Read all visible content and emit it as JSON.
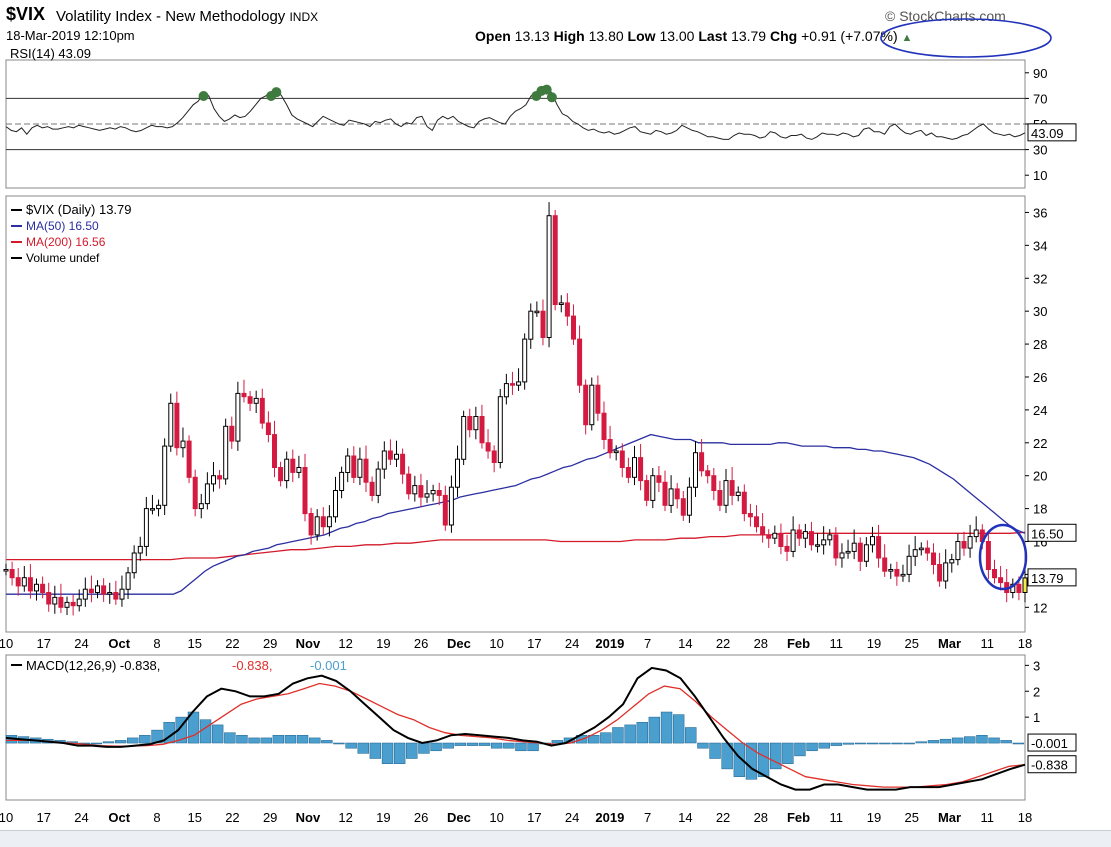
{
  "header": {
    "symbol": "$VIX",
    "name": "Volatility Index - New Methodology",
    "exchange": "INDX",
    "datetime": "18-Mar-2019 12:10pm",
    "brand": "© StockCharts.com",
    "open_label": "Open",
    "open": "13.13",
    "high_label": "High",
    "high": "13.80",
    "low_label": "Low",
    "low": "13.00",
    "last_label": "Last",
    "last": "13.79",
    "chg_label": "Chg",
    "chg": "+0.91 (+7.07%)",
    "chg_arrow": "▲"
  },
  "colors": {
    "up": "#000000",
    "down": "#d41a40",
    "today": "#f6e94a",
    "ma50": "#2b2fa0",
    "ma200": "#d41a2a",
    "hist": "#4a9fcf",
    "annotation": "#2233bb",
    "overbought": "#3f7a3f"
  },
  "chart_data": [
    {
      "type": "line",
      "legend": "RSI(14) 43.09",
      "series": [
        {
          "values": [
            48,
            45,
            44,
            47,
            42,
            47,
            49,
            47,
            48,
            46,
            46,
            47,
            48,
            47,
            49,
            48,
            47,
            46,
            45,
            46,
            47,
            46,
            48,
            47,
            45,
            44,
            45,
            47,
            49,
            48,
            48,
            47,
            48,
            51,
            55,
            60,
            65,
            68,
            75,
            72,
            62,
            56,
            52,
            54,
            57,
            55,
            56,
            60,
            65,
            70,
            72,
            75,
            78,
            72,
            65,
            57,
            54,
            52,
            50,
            48,
            52,
            56,
            54,
            52,
            50,
            49,
            53,
            52,
            51,
            50,
            48,
            52,
            51,
            53,
            54,
            50,
            48,
            51,
            50,
            55,
            56,
            48,
            45,
            53,
            56,
            54,
            56,
            52,
            50,
            48,
            47,
            52,
            54,
            55,
            53,
            51,
            50,
            56,
            60,
            62,
            65,
            72,
            75,
            79,
            80,
            74,
            65,
            58,
            56,
            52,
            50,
            47,
            45,
            46,
            44,
            43,
            44,
            42,
            43,
            45,
            47,
            48,
            44,
            43,
            42,
            45,
            44,
            42,
            43,
            45,
            49,
            47,
            45,
            44,
            42,
            40,
            40,
            39,
            38,
            38,
            41,
            43,
            42,
            42,
            41,
            39,
            40,
            44,
            43,
            40,
            39,
            41,
            41,
            42,
            39,
            38,
            40,
            43,
            42,
            42,
            41,
            43,
            42,
            40,
            41,
            46,
            47,
            44,
            44,
            42,
            48,
            50,
            46,
            43,
            42,
            44,
            45,
            41,
            43,
            40,
            40,
            39,
            38,
            39,
            41,
            42,
            45,
            48,
            50,
            46,
            43,
            42,
            41,
            42,
            40,
            41,
            43.09
          ]
        }
      ],
      "ylim": [
        0,
        100
      ],
      "yticks": [
        "90",
        "70",
        "50",
        "30",
        "10"
      ],
      "reference_lines": [
        70,
        50,
        30
      ],
      "last_label": "43.09"
    },
    {
      "type": "candlestick",
      "legend": [
        "$VIX (Daily) 13.79",
        "MA(50) 16.50",
        "MA(200) 16.56",
        "Volume undef"
      ],
      "ylim": [
        10.5,
        37
      ],
      "yticks": [
        "12",
        "14",
        "16",
        "18",
        "20",
        "22",
        "24",
        "26",
        "28",
        "30",
        "32",
        "34",
        "36"
      ],
      "close": [
        14.3,
        13.8,
        13.3,
        13.8,
        13.0,
        13.4,
        12.9,
        12.2,
        12.6,
        12.0,
        12.3,
        12.1,
        12.5,
        13.1,
        12.9,
        13.3,
        12.8,
        12.9,
        12.5,
        13.1,
        14.1,
        15.3,
        15.7,
        18.0,
        18.0,
        18.2,
        21.8,
        24.4,
        21.7,
        22.1,
        19.9,
        18.0,
        18.3,
        19.5,
        20.0,
        19.8,
        23.0,
        22.1,
        25.0,
        24.8,
        24.4,
        24.7,
        23.2,
        22.5,
        20.5,
        19.7,
        21.0,
        20.2,
        20.5,
        17.7,
        16.4,
        17.5,
        16.9,
        17.5,
        19.1,
        20.2,
        21.2,
        19.9,
        21.0,
        19.6,
        18.8,
        20.4,
        21.5,
        21.0,
        21.3,
        20.1,
        18.9,
        19.4,
        18.7,
        18.9,
        19.1,
        18.8,
        17.0,
        19.3,
        21.0,
        23.6,
        22.8,
        23.6,
        22.0,
        21.5,
        20.8,
        24.8,
        25.6,
        25.5,
        25.7,
        28.3,
        30.0,
        30.0,
        28.4,
        35.8,
        30.4,
        30.5,
        29.7,
        28.3,
        25.5,
        23.1,
        25.5,
        23.8,
        22.2,
        21.4,
        21.5,
        20.5,
        19.9,
        21.1,
        19.7,
        18.5,
        20.0,
        19.6,
        18.2,
        19.2,
        18.6,
        17.6,
        19.3,
        21.4,
        20.3,
        20.0,
        19.1,
        18.2,
        19.7,
        18.8,
        19.0,
        17.7,
        17.5,
        16.9,
        16.4,
        16.2,
        16.5,
        15.7,
        15.4,
        16.7,
        16.2,
        16.6,
        15.8,
        15.8,
        16.1,
        16.4,
        15.0,
        15.3,
        15.4,
        15.9,
        14.8,
        15.8,
        16.3,
        15.0,
        14.2,
        14.3,
        13.9,
        14.0,
        15.1,
        15.5,
        15.6,
        15.3,
        14.6,
        13.6,
        14.7,
        14.9,
        16.0,
        15.6,
        16.3,
        16.7,
        16.0,
        14.3,
        13.8,
        13.5,
        12.9,
        13.4,
        12.9,
        13.79
      ],
      "ma50": [
        12.8,
        12.8,
        12.8,
        12.8,
        12.8,
        12.8,
        12.8,
        12.8,
        12.8,
        12.8,
        12.8,
        12.8,
        12.8,
        12.8,
        12.8,
        12.8,
        12.8,
        12.8,
        12.8,
        12.8,
        12.8,
        12.8,
        13.0,
        13.4,
        13.8,
        14.2,
        14.5,
        14.7,
        14.9,
        15.1,
        15.2,
        15.4,
        15.5,
        15.6,
        15.8,
        15.9,
        16.0,
        16.1,
        16.2,
        16.3,
        16.4,
        16.6,
        16.8,
        16.9,
        17.1,
        17.2,
        17.4,
        17.5,
        17.7,
        17.8,
        17.9,
        18.0,
        18.1,
        18.2,
        18.3,
        18.4,
        18.5,
        18.7,
        18.8,
        18.9,
        19.0,
        19.1,
        19.2,
        19.3,
        19.4,
        19.6,
        19.8,
        19.9,
        20.1,
        20.3,
        20.5,
        20.6,
        20.8,
        21.0,
        21.1,
        21.3,
        21.5,
        21.7,
        21.9,
        22.1,
        22.3,
        22.5,
        22.4,
        22.3,
        22.2,
        22.2,
        22.2,
        22.0,
        22.0,
        22.0,
        22.0,
        21.9,
        21.9,
        21.9,
        21.9,
        21.9,
        21.9,
        22.0,
        22.0,
        21.9,
        21.8,
        21.8,
        21.8,
        21.8,
        21.7,
        21.7,
        21.7,
        21.6,
        21.6,
        21.5,
        21.5,
        21.4,
        21.3,
        21.2,
        21.1,
        20.9,
        20.7,
        20.4,
        20.1,
        19.8,
        19.4,
        19.0,
        18.6,
        18.2,
        17.8,
        17.4,
        17.0,
        16.7,
        16.5
      ],
      "ma200": [
        14.9,
        14.9,
        14.9,
        14.9,
        14.9,
        14.9,
        14.9,
        14.9,
        14.9,
        14.9,
        14.9,
        14.9,
        15.0,
        15.0,
        15.0,
        15.1,
        15.2,
        15.3,
        15.4,
        15.5,
        15.5,
        15.6,
        15.7,
        15.7,
        15.8,
        15.8,
        15.9,
        15.9,
        16.0,
        16.1,
        16.1,
        16.1,
        16.1,
        16.1,
        16.1,
        16.1,
        16.1,
        16.0,
        16.0,
        16.0,
        16.0,
        16.0,
        16.1,
        16.1,
        16.1,
        16.2,
        16.2,
        16.3,
        16.3,
        16.4,
        16.4,
        16.4,
        16.5,
        16.5,
        16.5,
        16.5,
        16.5,
        16.5,
        16.5,
        16.5,
        16.5,
        16.5,
        16.5,
        16.5,
        16.5,
        16.5,
        16.5,
        16.5,
        16.56
      ],
      "last_label": "13.79",
      "ma_label": "16.50"
    },
    {
      "type": "line",
      "legend": {
        "name": "MACD(12,26,9)",
        "macd": "-0.838",
        "signal": "-0.838",
        "hist": "-0.001"
      },
      "ylim": [
        -2.2,
        3.4
      ],
      "yticks": [
        "3",
        "2",
        "1"
      ],
      "macd": [
        0.2,
        0.15,
        0.1,
        0.05,
        0,
        -0.1,
        -0.1,
        -0.15,
        -0.15,
        -0.1,
        -0.05,
        0.1,
        0.5,
        1.2,
        1.8,
        2.1,
        2.0,
        1.8,
        1.8,
        1.9,
        2.3,
        2.5,
        2.6,
        2.4,
        2.0,
        1.5,
        1.0,
        0.5,
        0.2,
        0.0,
        0.1,
        0.3,
        0.35,
        0.3,
        0.25,
        0.2,
        0.1,
        0.05,
        -0.1,
        0.0,
        0.3,
        0.6,
        1.0,
        1.5,
        2.5,
        2.9,
        2.8,
        2.5,
        1.8,
        1.0,
        0.2,
        -0.5,
        -1.0,
        -1.3,
        -1.6,
        -1.8,
        -1.8,
        -1.6,
        -1.6,
        -1.7,
        -1.8,
        -1.8,
        -1.8,
        -1.7,
        -1.7,
        -1.7,
        -1.6,
        -1.5,
        -1.4,
        -1.2,
        -1.0,
        -0.838
      ],
      "signal": [
        0.1,
        0.1,
        0.1,
        0.05,
        0.0,
        -0.05,
        -0.1,
        -0.12,
        -0.12,
        -0.1,
        -0.05,
        0.1,
        0.3,
        0.7,
        1.1,
        1.5,
        1.7,
        1.8,
        1.9,
        2.1,
        2.3,
        2.2,
        2.0,
        1.7,
        1.4,
        1.1,
        0.9,
        0.6,
        0.4,
        0.3,
        0.25,
        0.2,
        0.1,
        0.05,
        0.0,
        -0.05,
        0.0,
        0.2,
        0.5,
        0.9,
        1.4,
        1.9,
        2.2,
        2.1,
        1.6,
        1.0,
        0.5,
        0.0,
        -0.4,
        -0.7,
        -1.0,
        -1.3,
        -1.4,
        -1.5,
        -1.6,
        -1.65,
        -1.7,
        -1.7,
        -1.7,
        -1.65,
        -1.6,
        -1.5,
        -1.3,
        -1.1,
        -0.9,
        -0.838
      ],
      "histogram": [
        0.3,
        0.25,
        0.2,
        0.15,
        0.1,
        0.05,
        0.0,
        0.0,
        0.05,
        0.1,
        0.2,
        0.3,
        0.5,
        0.8,
        1.0,
        1.2,
        0.9,
        0.7,
        0.4,
        0.3,
        0.2,
        0.2,
        0.3,
        0.3,
        0.3,
        0.2,
        0.1,
        0.0,
        -0.2,
        -0.4,
        -0.6,
        -0.8,
        -0.8,
        -0.6,
        -0.4,
        -0.3,
        -0.2,
        -0.1,
        -0.1,
        -0.1,
        -0.2,
        -0.2,
        -0.3,
        -0.3,
        0.0,
        0.1,
        0.2,
        0.3,
        0.3,
        0.4,
        0.6,
        0.7,
        0.8,
        1.0,
        1.2,
        1.1,
        0.6,
        -0.2,
        -0.6,
        -1.0,
        -1.3,
        -1.4,
        -1.3,
        -1.0,
        -0.8,
        -0.5,
        -0.3,
        -0.2,
        -0.1,
        -0.05,
        0.0,
        0.0,
        0.0,
        0.0,
        0.0,
        0.05,
        0.1,
        0.15,
        0.2,
        0.25,
        0.3,
        0.2,
        0.1,
        -0.001
      ],
      "last_macd_label": "-0.838",
      "last_hist_label": "-0.001"
    }
  ],
  "xaxis": {
    "ticks": [
      "10",
      "17",
      "24",
      "Oct",
      "8",
      "15",
      "22",
      "29",
      "Nov",
      "12",
      "19",
      "26",
      "Dec",
      "10",
      "17",
      "24",
      "2019",
      "7",
      "14",
      "22",
      "28",
      "Feb",
      "11",
      "19",
      "25",
      "Mar",
      "11",
      "18"
    ],
    "bold": [
      "Oct",
      "Nov",
      "Dec",
      "2019",
      "Feb",
      "Mar"
    ]
  }
}
